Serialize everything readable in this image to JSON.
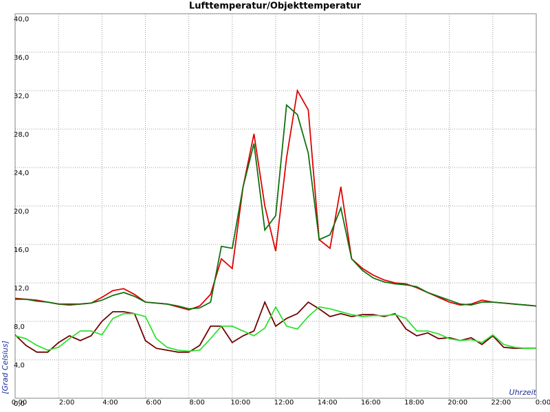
{
  "chart_data": {
    "type": "line",
    "title": "Lufttemperatur/Objekttemperatur",
    "ylabel": "[Grad Celsius]",
    "xlabel": "Uhrzeit",
    "xlim": [
      0,
      24
    ],
    "ylim": [
      0,
      40
    ],
    "grid": true,
    "xticks": [
      {
        "value": 0,
        "label": "0:00"
      },
      {
        "value": 2,
        "label": "2:00"
      },
      {
        "value": 4,
        "label": "4:00"
      },
      {
        "value": 6,
        "label": "6:00"
      },
      {
        "value": 8,
        "label": "8:00"
      },
      {
        "value": 10,
        "label": "10:00"
      },
      {
        "value": 12,
        "label": "12:00"
      },
      {
        "value": 14,
        "label": "14:00"
      },
      {
        "value": 16,
        "label": "16:00"
      },
      {
        "value": 18,
        "label": "18:00"
      },
      {
        "value": 20,
        "label": "20:00"
      },
      {
        "value": 22,
        "label": "22:00"
      },
      {
        "value": 24,
        "label": "0:00"
      }
    ],
    "yticks": [
      {
        "value": 0,
        "label": "0,0"
      },
      {
        "value": 4,
        "label": "4,0"
      },
      {
        "value": 8,
        "label": "8,0"
      },
      {
        "value": 12,
        "label": "12,0"
      },
      {
        "value": 16,
        "label": "16,0"
      },
      {
        "value": 20,
        "label": "20,0"
      },
      {
        "value": 24,
        "label": "24,0"
      },
      {
        "value": 28,
        "label": "28,0"
      },
      {
        "value": 32,
        "label": "32,0"
      },
      {
        "value": 36,
        "label": "36,0"
      },
      {
        "value": 40,
        "label": "40,0"
      }
    ],
    "x": [
      0,
      0.5,
      1,
      1.5,
      2,
      2.5,
      3,
      3.5,
      4,
      4.5,
      5,
      5.5,
      6,
      6.5,
      7,
      7.5,
      8,
      8.5,
      9,
      9.5,
      10,
      10.5,
      11,
      11.5,
      12,
      12.5,
      13,
      13.5,
      14,
      14.5,
      15,
      15.5,
      16,
      16.5,
      17,
      17.5,
      18,
      18.5,
      19,
      19.5,
      20,
      20.5,
      21,
      21.5,
      22,
      22.5,
      23,
      23.5,
      24
    ],
    "series": [
      {
        "color": "#e00000",
        "values": [
          10.4,
          10.3,
          10.2,
          10.0,
          9.8,
          9.7,
          9.8,
          9.9,
          10.5,
          11.2,
          11.4,
          10.8,
          10.0,
          9.9,
          9.8,
          9.5,
          9.2,
          9.6,
          10.8,
          14.5,
          13.5,
          22,
          27.5,
          20,
          15.3,
          25,
          32,
          30,
          16.5,
          15.6,
          22,
          14.5,
          13.5,
          12.8,
          12.3,
          12.0,
          11.9,
          11.5,
          11.0,
          10.5,
          10.0,
          9.7,
          9.8,
          10.2,
          10.0,
          9.9,
          9.8,
          9.7,
          9.6
        ]
      },
      {
        "color": "#107010",
        "values": [
          10.3,
          10.3,
          10.1,
          10.0,
          9.8,
          9.8,
          9.8,
          9.9,
          10.2,
          10.7,
          11.0,
          10.6,
          10.0,
          9.9,
          9.8,
          9.6,
          9.3,
          9.4,
          10.0,
          15.8,
          15.6,
          22,
          26.5,
          17.5,
          19,
          30.5,
          29.5,
          25.5,
          16.5,
          17,
          19.8,
          14.5,
          13.3,
          12.5,
          12.1,
          11.9,
          11.8,
          11.6,
          11.0,
          10.6,
          10.2,
          9.8,
          9.7,
          10.0,
          10.0,
          9.9,
          9.8,
          9.7,
          9.6
        ]
      },
      {
        "color": "#700000",
        "values": [
          6.6,
          5.5,
          4.8,
          4.8,
          5.8,
          6.5,
          6.0,
          6.5,
          8.0,
          9.0,
          9.0,
          8.8,
          6.0,
          5.2,
          5.0,
          4.8,
          4.8,
          5.5,
          7.5,
          7.5,
          5.8,
          6.5,
          7.0,
          10.0,
          7.5,
          8.3,
          8.8,
          10.0,
          9.3,
          8.5,
          8.8,
          8.5,
          8.7,
          8.7,
          8.5,
          8.8,
          7.2,
          6.5,
          6.8,
          6.2,
          6.3,
          6.0,
          6.3,
          5.6,
          6.5,
          5.3,
          5.2,
          5.2,
          5.2
        ]
      },
      {
        "color": "#30e030",
        "values": [
          6.5,
          6.2,
          5.5,
          5.0,
          5.3,
          6.2,
          7.0,
          7.0,
          6.6,
          8.3,
          8.8,
          8.8,
          8.5,
          6.2,
          5.3,
          5.0,
          4.9,
          5.0,
          6.2,
          7.5,
          7.5,
          7.0,
          6.5,
          7.3,
          9.5,
          7.5,
          7.2,
          8.5,
          9.5,
          9.3,
          9.0,
          8.7,
          8.5,
          8.6,
          8.6,
          8.7,
          8.3,
          7.0,
          7.0,
          6.7,
          6.2,
          6.0,
          6.1,
          5.8,
          6.6,
          5.6,
          5.3,
          5.2,
          5.2
        ]
      }
    ]
  }
}
